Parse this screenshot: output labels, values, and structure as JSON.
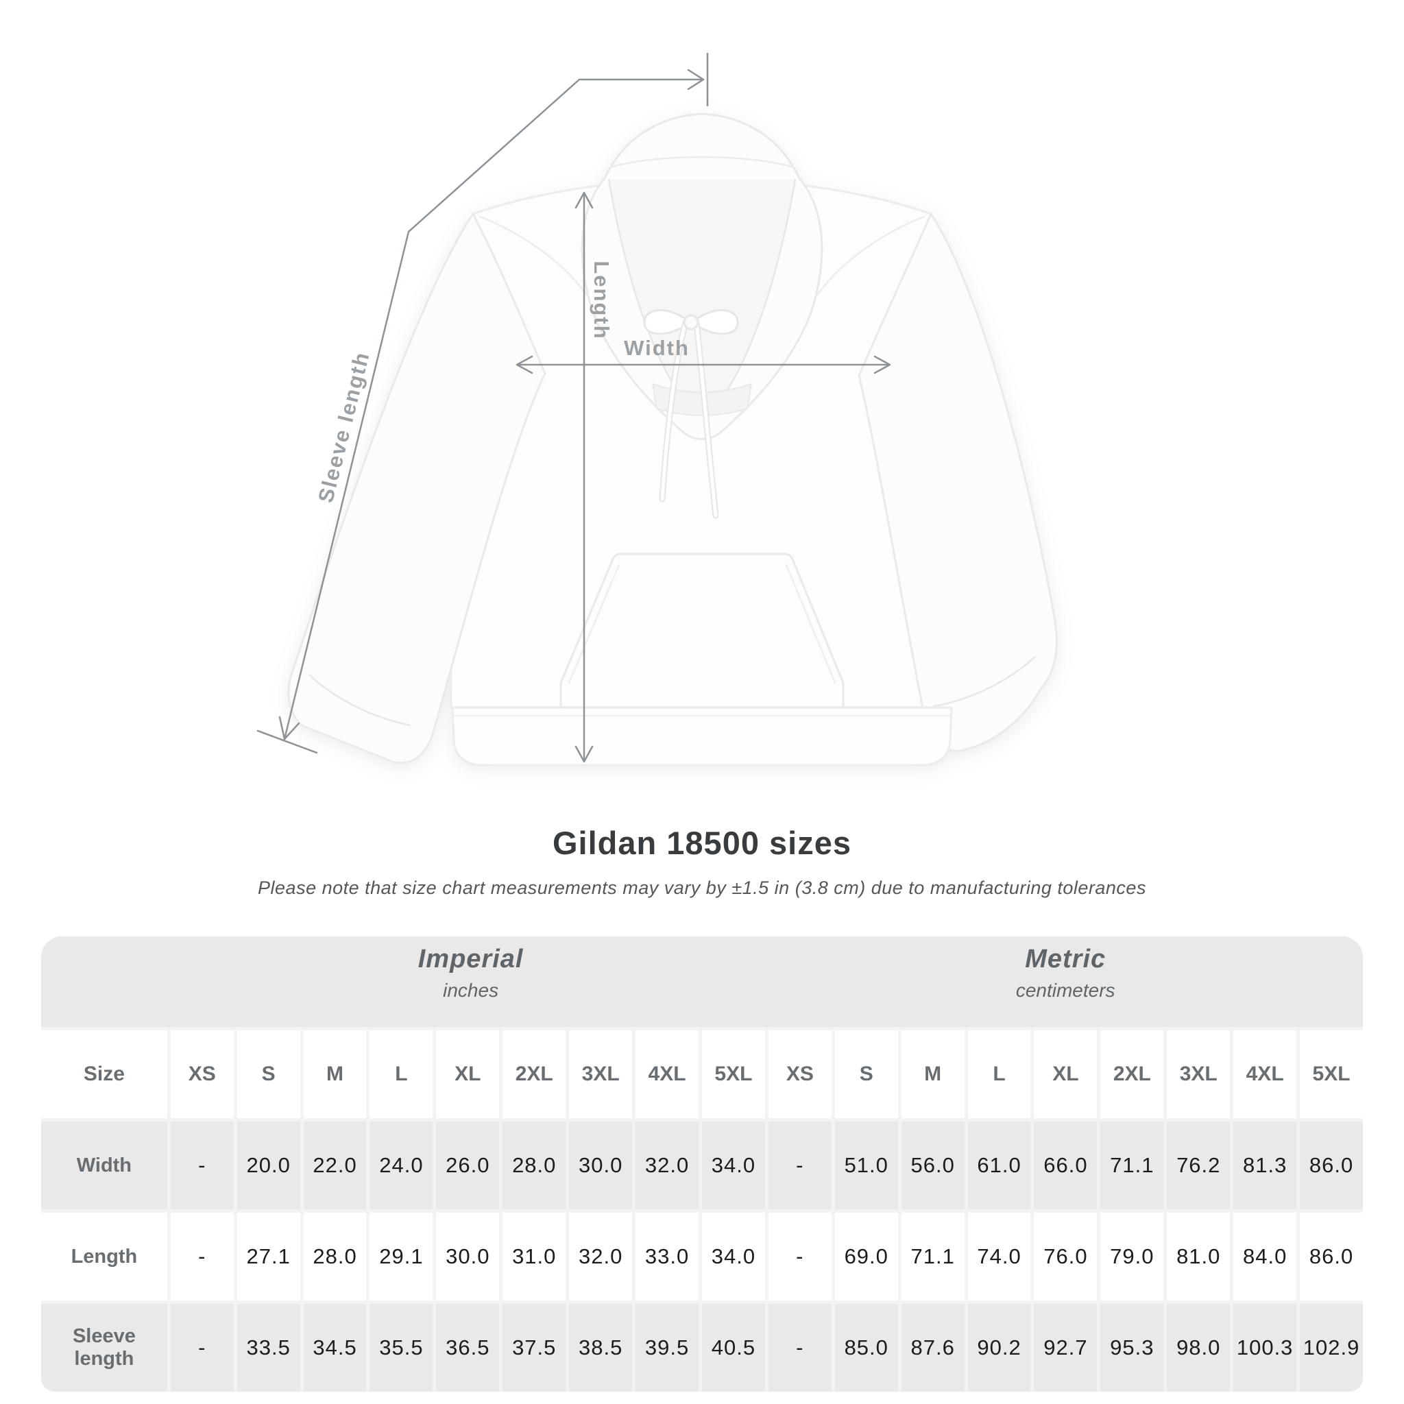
{
  "diagram": {
    "labels": {
      "length": "Length",
      "width": "Width",
      "sleeve": "Sleeve length"
    }
  },
  "title": "Gildan 18500 sizes",
  "subtitle": "Please note that size chart measurements may vary by ±1.5 in (3.8 cm) due to manufacturing tolerances",
  "table": {
    "sections": [
      {
        "name": "Imperial",
        "unit": "inches"
      },
      {
        "name": "Metric",
        "unit": "centimeters"
      }
    ],
    "size_header": "Size",
    "sizes": [
      "XS",
      "S",
      "M",
      "L",
      "XL",
      "2XL",
      "3XL",
      "4XL",
      "5XL"
    ],
    "rows": [
      {
        "label": "Width",
        "imperial": [
          "-",
          "20.0",
          "22.0",
          "24.0",
          "26.0",
          "28.0",
          "30.0",
          "32.0",
          "34.0"
        ],
        "metric": [
          "-",
          "51.0",
          "56.0",
          "61.0",
          "66.0",
          "71.1",
          "76.2",
          "81.3",
          "86.0"
        ]
      },
      {
        "label": "Length",
        "imperial": [
          "-",
          "27.1",
          "28.0",
          "29.1",
          "30.0",
          "31.0",
          "32.0",
          "33.0",
          "34.0"
        ],
        "metric": [
          "-",
          "69.0",
          "71.1",
          "74.0",
          "76.0",
          "79.0",
          "81.0",
          "84.0",
          "86.0"
        ]
      },
      {
        "label": "Sleeve length",
        "imperial": [
          "-",
          "33.5",
          "34.5",
          "35.5",
          "36.5",
          "37.5",
          "38.5",
          "39.5",
          "40.5"
        ],
        "metric": [
          "-",
          "85.0",
          "87.6",
          "90.2",
          "92.7",
          "95.3",
          "98.0",
          "100.3",
          "102.9"
        ]
      }
    ]
  },
  "colors": {
    "row_gray": "#e9e9e9",
    "gutter": "#f3f3f3",
    "header_text": "#686d72",
    "value_text": "#1a1c1d",
    "measure_line": "#8d9297",
    "measure_label": "#9aa0a4",
    "title_text": "#393c3f"
  }
}
